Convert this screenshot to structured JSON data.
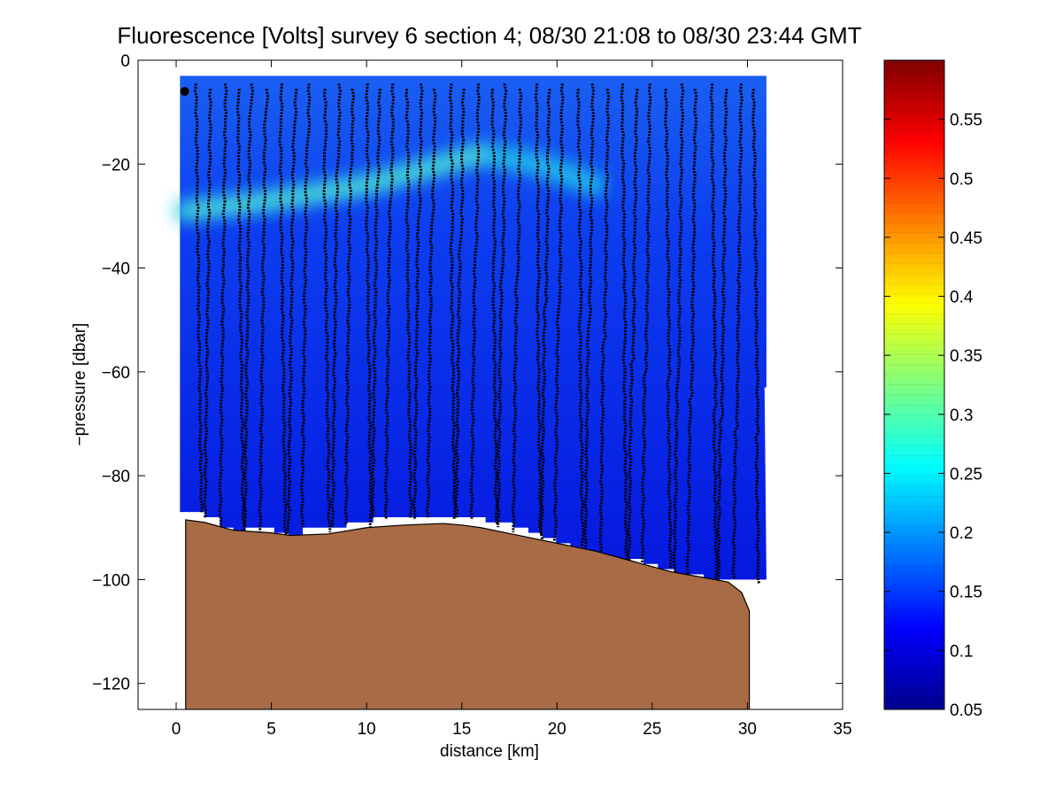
{
  "chart_data": {
    "type": "heatmap",
    "title": "Fluorescence [Volts] survey 6 section 4; 08/30 21:08 to 08/30 23:44 GMT",
    "xlabel": "distance [km]",
    "ylabel": "−pressure [dbar]",
    "xlim": [
      -2,
      35
    ],
    "ylim": [
      -125,
      0
    ],
    "xticks": [
      0,
      5,
      10,
      15,
      20,
      25,
      30,
      35
    ],
    "yticks": [
      0,
      -20,
      -40,
      -60,
      -80,
      -100,
      -120
    ],
    "ytick_labels": [
      "0",
      "−20",
      "−40",
      "−60",
      "−80",
      "−100",
      "−120"
    ],
    "colorbar": {
      "range": [
        0.05,
        0.6
      ],
      "ticks": [
        0.05,
        0.1,
        0.15,
        0.2,
        0.25,
        0.3,
        0.35,
        0.4,
        0.45,
        0.5,
        0.55
      ],
      "tick_labels": [
        "0.05",
        "0.1",
        "0.15",
        "0.2",
        "0.25",
        "0.3",
        "0.35",
        "0.4",
        "0.45",
        "0.5",
        "0.55"
      ],
      "colormap": "jet"
    },
    "chlorophyll_maximum": {
      "depth_dbar_at_x": [
        [
          0.5,
          -29
        ],
        [
          5,
          -27
        ],
        [
          10,
          -24
        ],
        [
          13,
          -21
        ],
        [
          16,
          -18
        ],
        [
          19,
          -20
        ],
        [
          22,
          -24
        ]
      ],
      "peak_value": 0.3
    },
    "background_value": 0.09,
    "profiles_x_km": [
      1.1,
      1.9,
      2.7,
      3.3,
      4.0,
      4.8,
      5.5,
      6.3,
      7.0,
      7.8,
      8.6,
      9.3,
      10.0,
      10.7,
      11.4,
      12.1,
      12.9,
      13.6,
      14.4,
      15.1,
      15.9,
      16.6,
      17.3,
      18.1,
      18.9,
      19.6,
      20.3,
      21.1,
      21.9,
      22.7,
      23.4,
      24.2,
      24.9,
      25.7,
      26.6,
      27.3,
      28.1,
      28.9,
      29.7,
      30.3
    ],
    "data_bottom_dbar": [
      -87,
      -88,
      -90,
      -91,
      -90,
      -90,
      -91,
      -92,
      -90,
      -90,
      -90,
      -89,
      -89,
      -88,
      -88,
      -88,
      -88,
      -88,
      -88,
      -88,
      -88,
      -89,
      -89,
      -90,
      -91,
      -92,
      -93,
      -94,
      -95,
      -96,
      -96,
      -96,
      -97,
      -98,
      -99,
      -99,
      -100,
      -100,
      -100,
      -100
    ],
    "data_top_dbar": -3,
    "seafloor_profile": [
      [
        0.5,
        -88.5
      ],
      [
        1.5,
        -89
      ],
      [
        3,
        -90.5
      ],
      [
        5,
        -91
      ],
      [
        6,
        -91.5
      ],
      [
        8,
        -91.2
      ],
      [
        10,
        -90
      ],
      [
        12,
        -89.5
      ],
      [
        14,
        -89.2
      ],
      [
        15,
        -89.5
      ],
      [
        16,
        -90
      ],
      [
        18,
        -91.5
      ],
      [
        20,
        -93
      ],
      [
        22,
        -94.5
      ],
      [
        24,
        -96.5
      ],
      [
        26,
        -98.5
      ],
      [
        28,
        -99.8
      ],
      [
        29,
        -100.5
      ],
      [
        29.7,
        -102.5
      ],
      [
        30.1,
        -106
      ],
      [
        30.1,
        -125
      ]
    ],
    "colors": {
      "seafloor": "#a96b45",
      "profile_dots": "#000000"
    }
  }
}
